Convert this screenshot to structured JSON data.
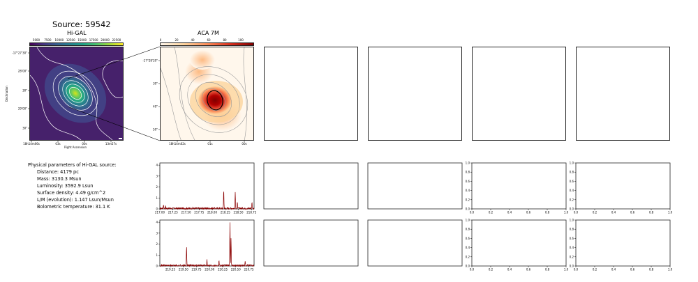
{
  "figure": {
    "title": "Source: 59542",
    "panels": {
      "higal_title": "Hi-GAL",
      "aca_title": "ACA 7M"
    }
  },
  "params": {
    "heading": "Physical parameters of Hi-GAL source:",
    "items": [
      "Distance: 4179 pc",
      "Mass: 3130.3 Msun",
      "Luminosity: 3592.9 Lsun",
      "Surface density: 4.49 g/cm^2",
      "L/M (evolution): 1.147 Lsun/Msun",
      "Bolometric temperature: 31.1 K"
    ]
  },
  "colors": {
    "spectrum_line": "#8b0000",
    "frame": "#222222",
    "viridis_bg": "#46216b",
    "contour": "#ffffff",
    "aca_contour": "#9a9a9a"
  },
  "chart_data": [
    {
      "type": "heatmap",
      "name": "Hi-GAL map",
      "title": "Hi-GAL",
      "xlabel": "Right Ascension",
      "ylabel": "Declination",
      "x_ticks": [
        "18h14m06s",
        "03s",
        "00s",
        "13m57s"
      ],
      "y_ticks": [
        "-17°27'30\"",
        "28'00\"",
        "30\"",
        "29'00\"",
        "30\""
      ],
      "colorbar_ticks": [
        "5000",
        "7500",
        "10000",
        "12500",
        "15000",
        "17500",
        "20000",
        "22500"
      ],
      "colormap": "viridis"
    },
    {
      "type": "heatmap",
      "name": "ACA 7M map",
      "title": "ACA 7M",
      "x_ticks": [
        "18h14m02s",
        "01s",
        "00s"
      ],
      "y_ticks": [
        "-17°28'20\"",
        "30\"",
        "40\"",
        "50\""
      ],
      "colorbar_ticks": [
        "0",
        "20",
        "40",
        "60",
        "80",
        "100"
      ],
      "colormap": "OrRd"
    },
    {
      "type": "line",
      "name": "spectrum 1",
      "x_ticks": [
        "217.00",
        "217.25",
        "217.50",
        "217.75",
        "218.00",
        "218.25",
        "218.50",
        "218.75"
      ],
      "y_ticks": [
        "0",
        "1",
        "2",
        "3",
        "4"
      ],
      "xlim": [
        217.0,
        218.8
      ],
      "ylim": [
        0,
        4.2
      ],
      "peaks": [
        [
          217.07,
          0.35
        ],
        [
          217.11,
          0.2
        ],
        [
          218.22,
          1.75
        ],
        [
          218.44,
          1.5
        ],
        [
          218.48,
          0.55
        ],
        [
          218.76,
          0.6
        ]
      ],
      "noise_level": 0.08
    },
    {
      "type": "line",
      "name": "spectrum 2",
      "x_ticks": [
        "219.25",
        "219.50",
        "219.75",
        "220.00",
        "220.25",
        "220.50",
        "220.75"
      ],
      "y_ticks": [
        "0",
        "1",
        "2",
        "3",
        "4"
      ],
      "xlim": [
        219.05,
        220.85
      ],
      "ylim": [
        0,
        4.2
      ],
      "peaks": [
        [
          219.56,
          1.75
        ],
        [
          219.95,
          0.6
        ],
        [
          220.18,
          0.5
        ],
        [
          220.39,
          4.05
        ],
        [
          220.41,
          2.5
        ],
        [
          220.68,
          0.35
        ]
      ],
      "noise_level": 0.08
    },
    {
      "type": "line",
      "name": "empty axes 1",
      "x_ticks": [
        "0.0",
        "0.2",
        "0.4",
        "0.6",
        "0.8",
        "1.0"
      ],
      "y_ticks": [
        "0.0",
        "0.2",
        "0.4",
        "0.6",
        "0.8",
        "1.0"
      ]
    },
    {
      "type": "line",
      "name": "empty axes 2",
      "x_ticks": [
        "0.0",
        "0.2",
        "0.4",
        "0.6",
        "0.8",
        "1.0"
      ],
      "y_ticks": [
        "0.0",
        "0.2",
        "0.4",
        "0.6",
        "0.8",
        "1.0"
      ]
    },
    {
      "type": "line",
      "name": "empty axes 3",
      "x_ticks": [
        "0.0",
        "0.2",
        "0.4",
        "0.6",
        "0.8",
        "1.0"
      ],
      "y_ticks": [
        "0.0",
        "0.2",
        "0.4",
        "0.6",
        "0.8",
        "1.0"
      ]
    },
    {
      "type": "line",
      "name": "empty axes 4",
      "x_ticks": [
        "0.0",
        "0.2",
        "0.4",
        "0.6",
        "0.8",
        "1.0"
      ],
      "y_ticks": [
        "0.0",
        "0.2",
        "0.4",
        "0.6",
        "0.8",
        "1.0"
      ]
    }
  ]
}
